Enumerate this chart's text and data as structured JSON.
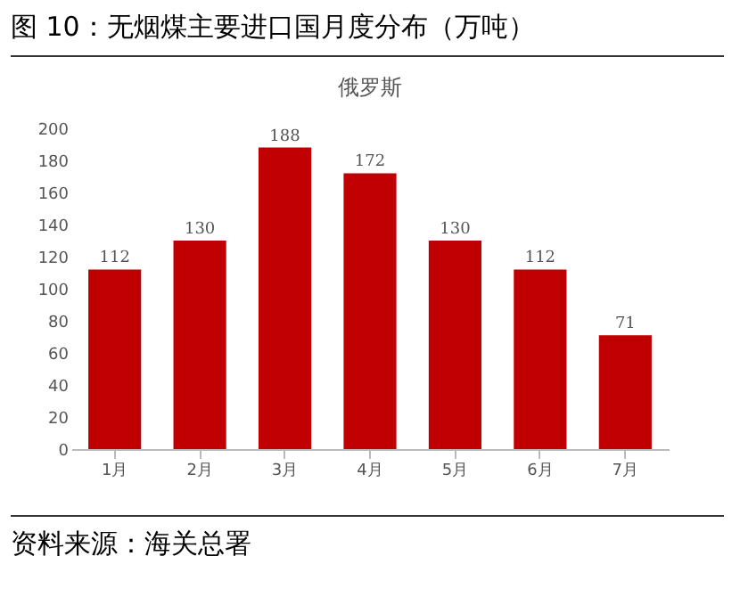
{
  "chart_data": {
    "type": "bar",
    "title": "图 10：无烟煤主要进口国月度分布（万吨）",
    "subtitle": "俄罗斯",
    "categories": [
      "1月",
      "2月",
      "3月",
      "4月",
      "5月",
      "6月",
      "7月"
    ],
    "values": [
      112,
      130,
      188,
      172,
      130,
      112,
      71
    ],
    "color": "#c00000",
    "ylim": [
      0,
      200
    ],
    "yticks": [
      0,
      20,
      40,
      60,
      80,
      100,
      120,
      140,
      160,
      180,
      200
    ],
    "grid": false,
    "data_labels": true,
    "annotations": [
      "资料来源：海关总署"
    ]
  }
}
